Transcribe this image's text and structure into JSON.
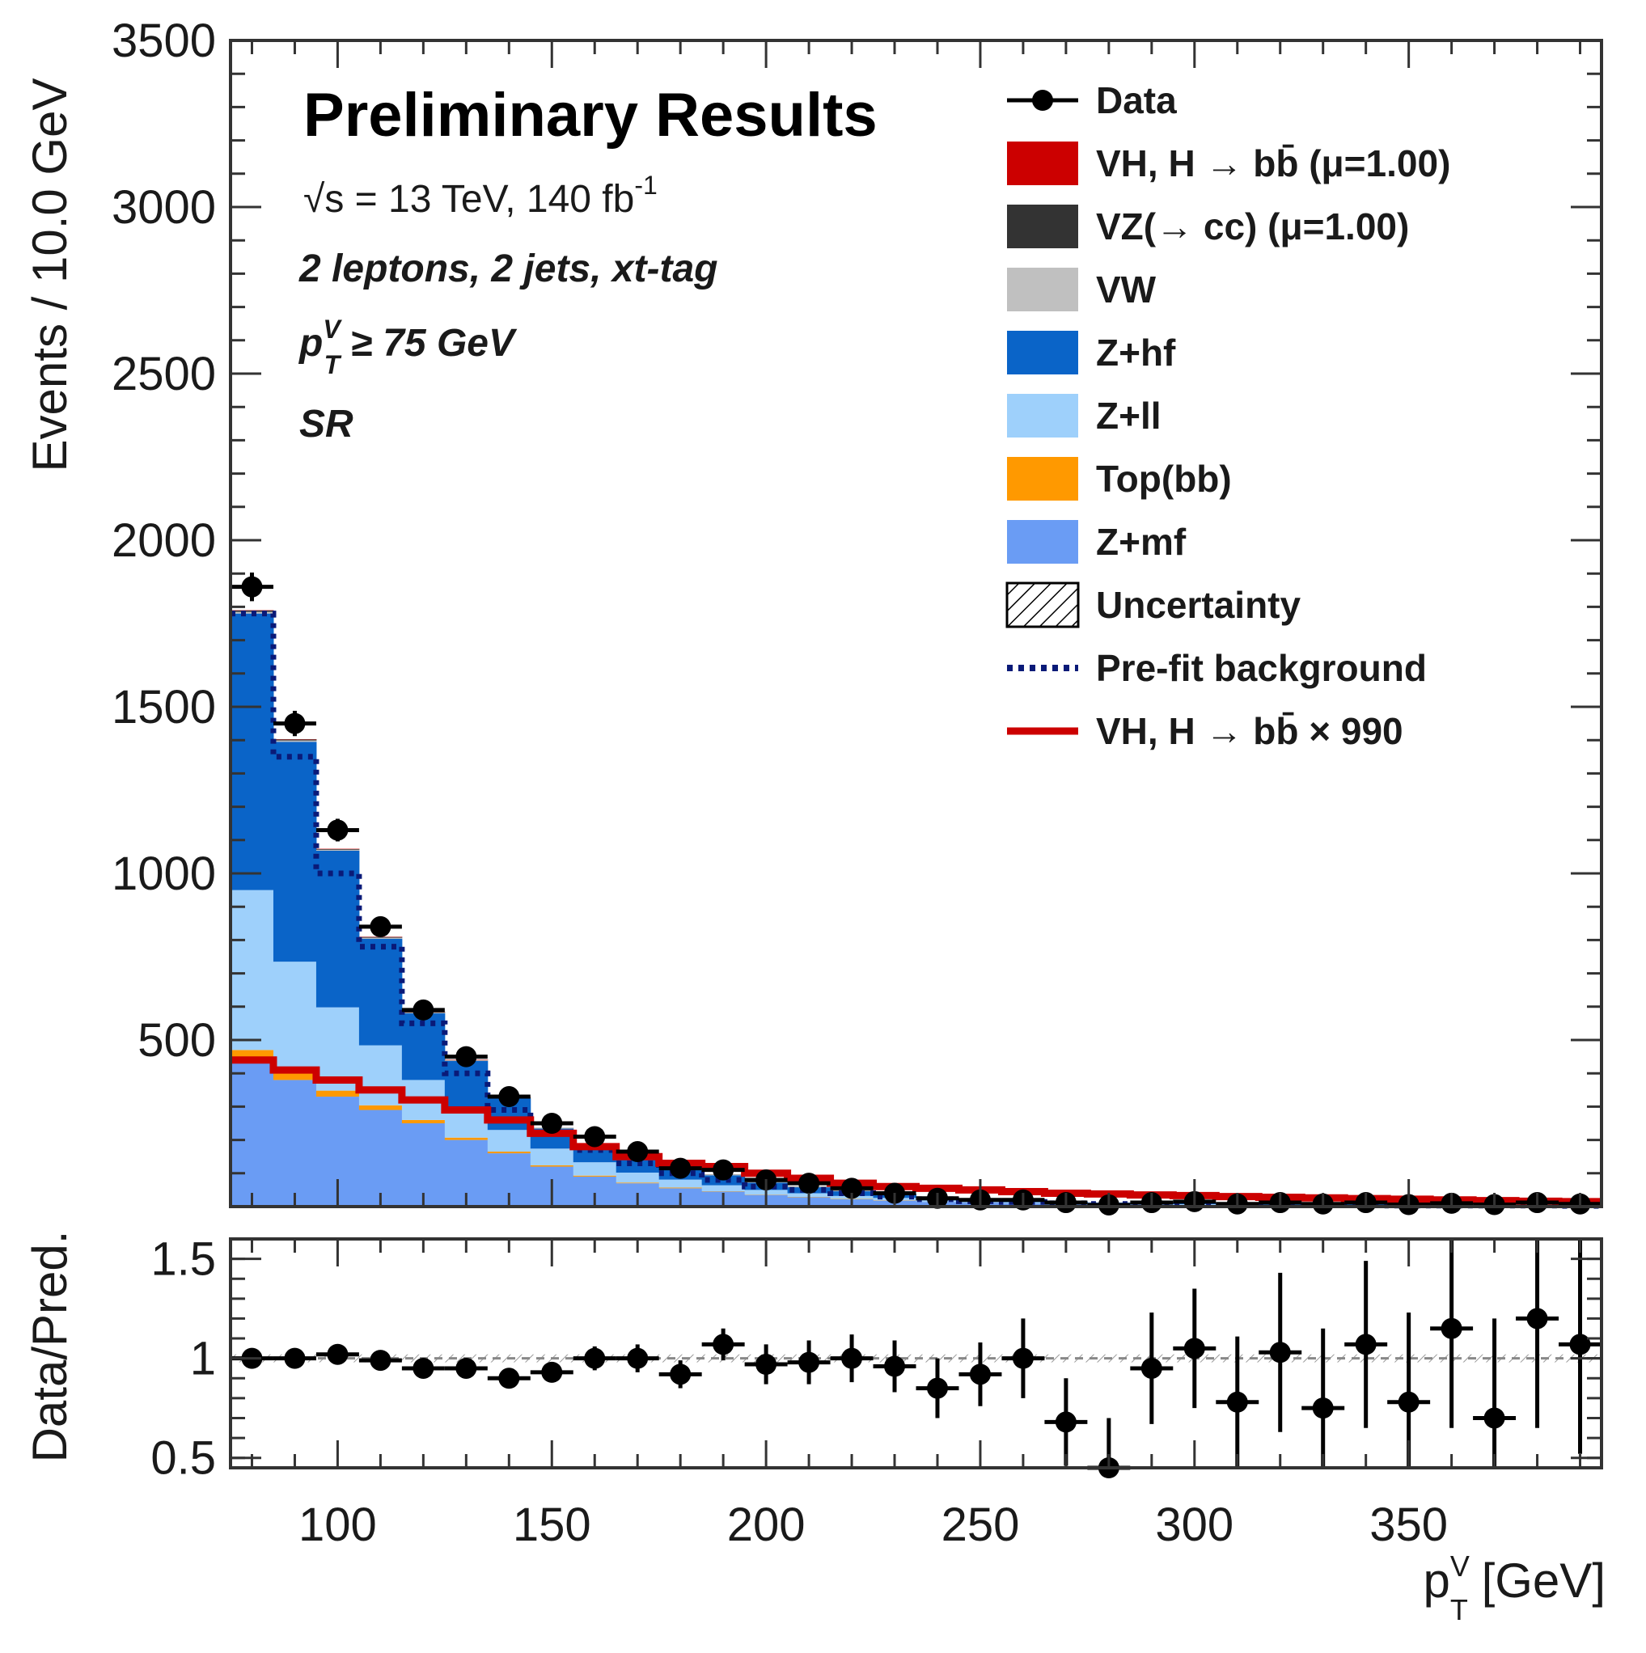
{
  "banner": "Preliminary Results",
  "annotations": {
    "energy": "√s = 13 TeV, 140 fb",
    "energy_sup": "-1",
    "channel": "2 leptons, 2 jets, xt-tag",
    "cut_p": "p",
    "cut_sup": "V",
    "cut_sub": "T",
    "cut_rest": " ≥ 75 GeV",
    "region": "SR"
  },
  "colors": {
    "vh_signal": "#cc0000",
    "vz_cc": "#333333",
    "vw": "#c0c0c0",
    "z_hf": "#0a64c8",
    "z_ll": "#9ed0fb",
    "top_bb": "#ff9900",
    "z_mf": "#6a9cf4",
    "prefit": "#0a1a78",
    "data": "#000000"
  },
  "legend": [
    {
      "label": "Data",
      "style": "marker",
      "color": "#000000"
    },
    {
      "label": "VH, H  → bb̄ (μ=1.00)",
      "style": "fill",
      "color": "#cc0000"
    },
    {
      "label": "VZ(→ cc) (μ=1.00)",
      "style": "fill",
      "color": "#333333"
    },
    {
      "label": "VW",
      "style": "fill",
      "color": "#c0c0c0"
    },
    {
      "label": "Z+hf",
      "style": "fill",
      "color": "#0a64c8"
    },
    {
      "label": "Z+ll",
      "style": "fill",
      "color": "#9ed0fb"
    },
    {
      "label": "Top(bb)",
      "style": "fill",
      "color": "#ff9900"
    },
    {
      "label": "Z+mf",
      "style": "fill",
      "color": "#6a9cf4"
    },
    {
      "label": "Uncertainty",
      "style": "hatch",
      "color": "#000000"
    },
    {
      "label": "Pre-fit background",
      "style": "dotted",
      "color": "#0a1a78"
    },
    {
      "label": "VH, H  → bb̄  × 990",
      "style": "line",
      "color": "#cc0000"
    }
  ],
  "chart_data": {
    "type": "bar",
    "stacked": true,
    "xlabel_main": "p",
    "xlabel_sup": "V",
    "xlabel_sub": "T",
    "xlabel_rest": " [GeV]",
    "ylabel": "Events / 10.0 GeV",
    "ratio_ylabel": "Data/Pred.",
    "xlim": [
      75,
      395
    ],
    "ylim": [
      0,
      3500
    ],
    "ratio_ylim": [
      0.45,
      1.6
    ],
    "x_ticks": [
      100,
      150,
      200,
      250,
      300,
      350
    ],
    "y_ticks": [
      500,
      1000,
      1500,
      2000,
      2500,
      3000,
      3500
    ],
    "ratio_y_ticks": [
      0.5,
      1,
      1.5
    ],
    "bin_edges": [
      75,
      85,
      95,
      105,
      115,
      125,
      135,
      145,
      155,
      165,
      175,
      185,
      195,
      205,
      215,
      225,
      235,
      245,
      255,
      265,
      275,
      285,
      295,
      305,
      315,
      325,
      335,
      345,
      355,
      365,
      375,
      385,
      395
    ],
    "series": [
      {
        "name": "Z+mf",
        "color": "#6a9cf4",
        "values": [
          440,
          380,
          330,
          290,
          250,
          200,
          160,
          120,
          90,
          70,
          55,
          45,
          35,
          28,
          22,
          18,
          14,
          12,
          10,
          8,
          7,
          6,
          5,
          4,
          4,
          3,
          3,
          3,
          2,
          2,
          2,
          2
        ]
      },
      {
        "name": "Top(bb)",
        "color": "#ff9900",
        "values": [
          30,
          25,
          18,
          14,
          10,
          7,
          5,
          4,
          3,
          2,
          2,
          1,
          1,
          1,
          1,
          1,
          0,
          0,
          0,
          0,
          0,
          0,
          0,
          0,
          0,
          0,
          0,
          0,
          0,
          0,
          0,
          0
        ]
      },
      {
        "name": "Z+ll",
        "color": "#9ed0fb",
        "values": [
          480,
          330,
          250,
          180,
          120,
          90,
          65,
          50,
          40,
          30,
          24,
          18,
          14,
          11,
          9,
          7,
          5,
          4,
          3,
          3,
          2,
          2,
          2,
          1,
          1,
          1,
          1,
          1,
          1,
          1,
          1,
          1
        ]
      },
      {
        "name": "Z+hf",
        "color": "#0a64c8",
        "values": [
          830,
          660,
          470,
          320,
          200,
          140,
          95,
          60,
          45,
          40,
          35,
          30,
          22,
          18,
          14,
          12,
          8,
          6,
          5,
          4,
          3,
          3,
          3,
          2,
          2,
          2,
          2,
          1,
          1,
          1,
          1,
          1
        ]
      },
      {
        "name": "VW",
        "color": "#c0c0c0",
        "values": [
          5,
          4,
          3,
          3,
          2,
          2,
          2,
          1,
          1,
          1,
          1,
          1,
          1,
          1,
          1,
          1,
          1,
          0,
          0,
          0,
          0,
          0,
          0,
          0,
          0,
          0,
          0,
          0,
          0,
          0,
          0,
          0
        ]
      },
      {
        "name": "VZ(→ cc) (μ=1.00)",
        "color": "#333333",
        "values": [
          4,
          3,
          2,
          2,
          2,
          1,
          1,
          1,
          1,
          1,
          1,
          1,
          1,
          1,
          1,
          0,
          0,
          0,
          0,
          0,
          0,
          0,
          0,
          0,
          0,
          0,
          0,
          0,
          0,
          0,
          0,
          0
        ]
      },
      {
        "name": "VH, H  → bb̄ (μ=1.00)",
        "color": "#cc0000",
        "values": [
          1,
          1,
          1,
          1,
          1,
          1,
          1,
          0,
          0,
          0,
          0,
          0,
          0,
          0,
          0,
          0,
          0,
          0,
          0,
          0,
          0,
          0,
          0,
          0,
          0,
          0,
          0,
          0,
          0,
          0,
          0,
          0
        ]
      }
    ],
    "data_points": {
      "x": [
        80,
        90,
        100,
        110,
        120,
        130,
        140,
        150,
        160,
        170,
        180,
        190,
        200,
        210,
        220,
        230,
        240,
        250,
        260,
        270,
        280,
        290,
        300,
        310,
        320,
        330,
        340,
        350,
        360,
        370,
        380,
        390
      ],
      "y": [
        1860,
        1450,
        1130,
        840,
        590,
        450,
        330,
        250,
        210,
        165,
        115,
        110,
        80,
        70,
        55,
        40,
        25,
        20,
        20,
        12,
        5,
        12,
        15,
        8,
        12,
        8,
        12,
        6,
        10,
        6,
        12,
        8
      ],
      "yerr": [
        43,
        38,
        34,
        29,
        24,
        21,
        18,
        16,
        14,
        13,
        11,
        10,
        9,
        8,
        7,
        6,
        5,
        4,
        4,
        3,
        2,
        3,
        4,
        3,
        3,
        3,
        3,
        2,
        3,
        2,
        3,
        3
      ]
    },
    "prefit_background": [
      1780,
      1350,
      1000,
      780,
      550,
      400,
      290,
      220,
      170,
      130,
      100,
      80,
      60,
      50,
      40,
      30,
      22,
      16,
      14,
      10,
      8,
      7,
      6,
      5,
      5,
      4,
      4,
      3,
      3,
      3,
      3,
      2
    ],
    "signal_scaled": [
      440,
      410,
      380,
      350,
      320,
      290,
      260,
      220,
      180,
      150,
      130,
      120,
      100,
      85,
      70,
      60,
      55,
      50,
      45,
      40,
      38,
      35,
      33,
      30,
      28,
      26,
      24,
      22,
      20,
      18,
      16,
      15
    ],
    "ratio": {
      "values": [
        1.0,
        1.0,
        1.02,
        0.99,
        0.95,
        0.95,
        0.9,
        0.93,
        1.0,
        1.0,
        0.92,
        1.07,
        0.97,
        0.98,
        1.0,
        0.96,
        0.85,
        0.92,
        1.0,
        0.68,
        0.45,
        0.95,
        1.05,
        0.78,
        1.03,
        0.75,
        1.07,
        0.78,
        1.15,
        0.7,
        1.2,
        1.07
      ],
      "errors": [
        0.02,
        0.02,
        0.03,
        0.03,
        0.04,
        0.04,
        0.05,
        0.05,
        0.06,
        0.07,
        0.07,
        0.08,
        0.1,
        0.11,
        0.12,
        0.13,
        0.15,
        0.16,
        0.2,
        0.22,
        0.25,
        0.28,
        0.3,
        0.33,
        0.4,
        0.4,
        0.42,
        0.45,
        0.5,
        0.5,
        0.55,
        0.55
      ]
    }
  }
}
